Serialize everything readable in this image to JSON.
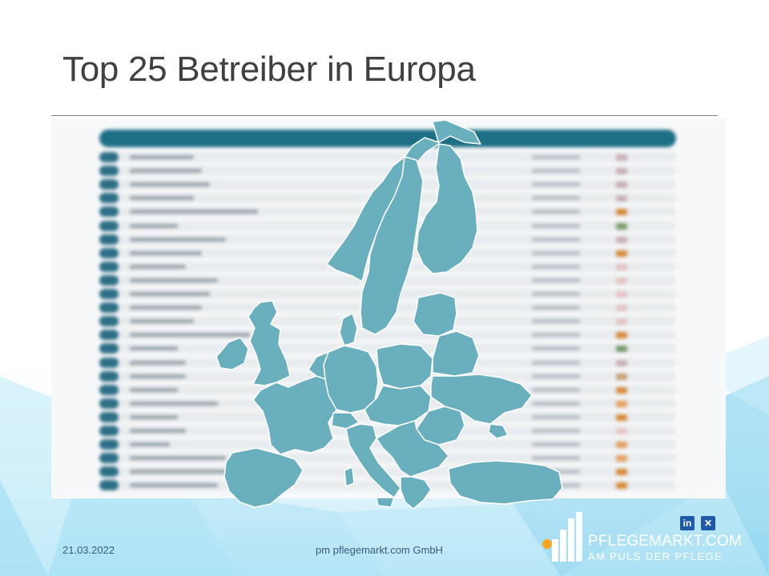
{
  "slide": {
    "title": "Top 25 Betreiber in Europa",
    "date": "21.03.2022",
    "company": "pm pflegemarkt.com GmbH"
  },
  "logo": {
    "name": "PFLEGEMARKT.COM",
    "tagline": "AM PULS DER PFLEGE"
  },
  "social": {
    "linkedin_icon": "linkedin-icon",
    "xing_icon": "xing-icon"
  },
  "colors": {
    "title": "#404040",
    "map_fill": "#6aafbd",
    "map_border": "#ffffff",
    "table_header": "#1e6f86",
    "footer_text": "#3b5b7a",
    "background_accent": "#5bc3e6"
  },
  "table": {
    "rows_count_visible": 25,
    "blurred": true
  }
}
